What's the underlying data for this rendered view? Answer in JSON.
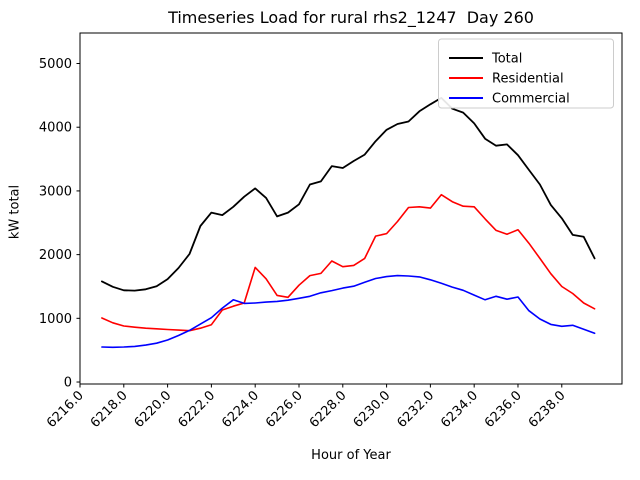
{
  "figure": {
    "title": "Timeseries Load for rural rhs2_1247  Day 260",
    "xlabel": "Hour of Year",
    "ylabel": "kW total",
    "background_color": "#ffffff",
    "legend": {
      "entries": [
        "Total",
        "Residential",
        "Commercial"
      ],
      "border_color": "#cccccc",
      "position": "upper right"
    }
  },
  "chart_data": {
    "type": "line",
    "title": "Timeseries Load for rural rhs2_1247  Day 260",
    "xlabel": "Hour of Year",
    "ylabel": "kW total",
    "grid": false,
    "legend_position": "upper right",
    "xlim": [
      6216.0,
      6240.75
    ],
    "ylim": [
      -31,
      5479
    ],
    "xticks": [
      6216,
      6218,
      6220,
      6222,
      6224,
      6226,
      6228,
      6230,
      6232,
      6234,
      6236,
      6238
    ],
    "xtick_labels": [
      "6216.0",
      "6218.0",
      "6220.0",
      "6222.0",
      "6224.0",
      "6226.0",
      "6228.0",
      "6230.0",
      "6232.0",
      "6234.0",
      "6236.0",
      "6238.0"
    ],
    "xtick_rotation": 45,
    "yticks": [
      0,
      1000,
      2000,
      3000,
      4000,
      5000
    ],
    "ytick_labels": [
      "0",
      "1000",
      "2000",
      "3000",
      "4000",
      "5000"
    ],
    "x": [
      6217.0,
      6217.5,
      6218.0,
      6218.5,
      6219.0,
      6219.5,
      6220.0,
      6220.5,
      6221.0,
      6221.5,
      6222.0,
      6222.5,
      6223.0,
      6223.5,
      6224.0,
      6224.5,
      6225.0,
      6225.5,
      6226.0,
      6226.5,
      6227.0,
      6227.5,
      6228.0,
      6228.5,
      6229.0,
      6229.5,
      6230.0,
      6230.5,
      6231.0,
      6231.5,
      6232.0,
      6232.5,
      6233.0,
      6233.5,
      6234.0,
      6234.5,
      6235.0,
      6235.5,
      6236.0,
      6236.5,
      6237.0,
      6237.5,
      6238.0,
      6238.5,
      6239.0,
      6239.5
    ],
    "series": [
      {
        "name": "Total",
        "color": "#000000",
        "values": [
          1580,
          1495,
          1440,
          1435,
          1455,
          1505,
          1615,
          1790,
          2010,
          2450,
          2660,
          2620,
          2750,
          2910,
          3040,
          2890,
          2600,
          2660,
          2790,
          3100,
          3150,
          3390,
          3360,
          3470,
          3570,
          3780,
          3960,
          4050,
          4090,
          4250,
          4360,
          4460,
          4290,
          4230,
          4060,
          3820,
          3710,
          3730,
          3560,
          3330,
          3100,
          2780,
          2570,
          2310,
          2280,
          1940
        ]
      },
      {
        "name": "Residential",
        "color": "#ff0000",
        "values": [
          1005,
          930,
          880,
          860,
          845,
          835,
          825,
          815,
          805,
          845,
          900,
          1130,
          1190,
          1240,
          1800,
          1620,
          1360,
          1330,
          1520,
          1670,
          1705,
          1900,
          1810,
          1830,
          1940,
          2290,
          2330,
          2520,
          2740,
          2750,
          2730,
          2940,
          2830,
          2760,
          2750,
          2560,
          2380,
          2320,
          2390,
          2180,
          1940,
          1700,
          1500,
          1390,
          1240,
          1150
        ]
      },
      {
        "name": "Commercial",
        "color": "#0000ff",
        "values": [
          550,
          545,
          550,
          560,
          580,
          610,
          660,
          730,
          810,
          910,
          1010,
          1160,
          1290,
          1235,
          1240,
          1255,
          1265,
          1285,
          1315,
          1345,
          1400,
          1435,
          1475,
          1505,
          1565,
          1625,
          1655,
          1670,
          1665,
          1650,
          1605,
          1550,
          1490,
          1440,
          1365,
          1290,
          1345,
          1300,
          1335,
          1120,
          990,
          905,
          875,
          890,
          830,
          765
        ]
      }
    ]
  }
}
